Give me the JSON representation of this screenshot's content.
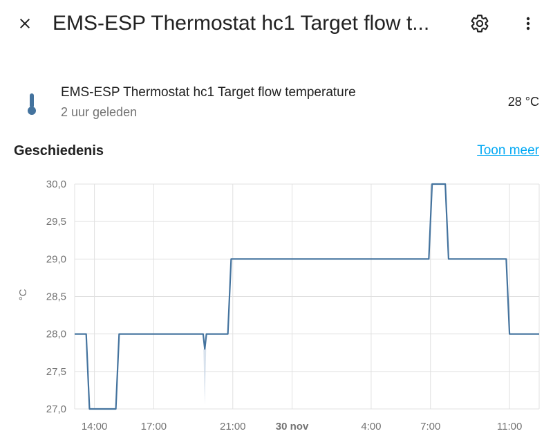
{
  "header": {
    "title": "EMS-ESP Thermostat hc1 Target flow t...",
    "icons": {
      "close": "close-icon",
      "settings": "gear-icon",
      "menu": "more-vertical-icon"
    }
  },
  "entity": {
    "icon": "thermometer-icon",
    "name": "EMS-ESP Thermostat hc1 Target flow temperature",
    "last_changed": "2 uur geleden",
    "state": "28 °C"
  },
  "history": {
    "title": "Geschiedenis",
    "show_more": "Toon meer"
  },
  "colors": {
    "line": "#44739e",
    "link": "#03a9f4",
    "grid": "#e0e0e0",
    "icon": "#44739e"
  },
  "chart_data": {
    "type": "line",
    "xlabel": "",
    "ylabel": "°C",
    "ylim": [
      27.0,
      30.0
    ],
    "y_ticks": [
      "30,0",
      "29,5",
      "29,0",
      "28,5",
      "28,0",
      "27,5",
      "27,0"
    ],
    "x_ticks": [
      "14:00",
      "17:00",
      "21:00",
      "30 nov",
      "4:00",
      "7:00",
      "11:00"
    ],
    "grid": true,
    "series": [
      {
        "name": "",
        "points": [
          [
            "29-11 13:00",
            28.0
          ],
          [
            "29-11 13:35",
            28.0
          ],
          [
            "29-11 13:45",
            27.0
          ],
          [
            "29-11 15:05",
            27.0
          ],
          [
            "29-11 15:15",
            28.0
          ],
          [
            "29-11 19:30",
            28.0
          ],
          [
            "29-11 19:35",
            27.8
          ],
          [
            "29-11 19:40",
            28.0
          ],
          [
            "29-11 20:45",
            28.0
          ],
          [
            "29-11 20:55",
            29.0
          ],
          [
            "30-11 6:55",
            29.0
          ],
          [
            "30-11 7:05",
            30.0
          ],
          [
            "30-11 7:45",
            30.0
          ],
          [
            "30-11 7:55",
            29.0
          ],
          [
            "30-11 10:50",
            29.0
          ],
          [
            "30-11 11:00",
            28.0
          ],
          [
            "30-11 12:30",
            28.0
          ]
        ]
      }
    ]
  }
}
